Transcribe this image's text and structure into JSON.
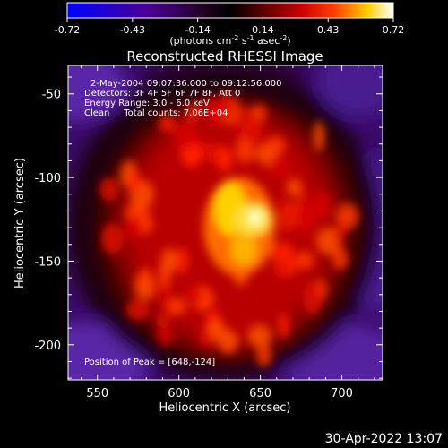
{
  "chart_data": {
    "type": "heatmap",
    "title": "Reconstructed RHESSI Image",
    "xlabel": "Heliocentric X (arcsec)",
    "ylabel": "Heliocentric Y (arcsec)",
    "xlim": [
      532,
      725
    ],
    "ylim": [
      -221,
      -33
    ],
    "x_ticks": [
      550,
      600,
      650,
      700
    ],
    "y_ticks": [
      -50,
      -100,
      -150,
      -200
    ],
    "colorbar": {
      "range": [
        -0.72,
        0.72
      ],
      "ticks": [
        "-0.72",
        "-0.43",
        "-0.14",
        "0.14",
        "0.43",
        "0.72"
      ],
      "unit_label": "(photons cm",
      "colormap": [
        "#0000ff",
        "#000000",
        "#ff0000",
        "#ffff00",
        "#ffffff"
      ]
    },
    "annotations": [
      "2-May-2004 09:07:36.000 to 09:12:56.000",
      "Detectors: 3F 4F 5F 6F 7F 8F, Att 0",
      "Energy Range: 3.0 - 6.0 keV",
      "Clean     Total counts: 7.06E+04"
    ],
    "peak_label": "Position of Peak = [648,-124]",
    "peak": [
      648,
      -124
    ],
    "timestamp": "30-Apr-2022 13:07"
  }
}
